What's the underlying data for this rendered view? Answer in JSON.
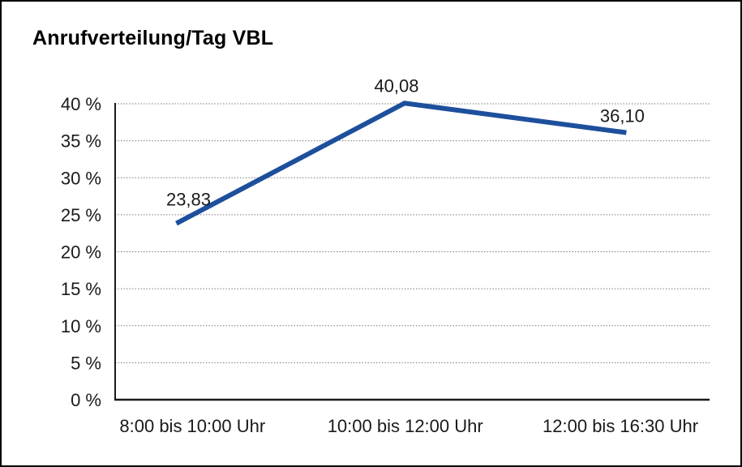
{
  "title": "Anrufverteilung/Tag VBL",
  "chart_data": {
    "type": "line",
    "title": "Anrufverteilung/Tag VBL",
    "categories": [
      "8:00 bis 10:00 Uhr",
      "10:00 bis 12:00 Uhr",
      "12:00 bis 16:30 Uhr"
    ],
    "values": [
      23.83,
      40.08,
      36.1
    ],
    "value_labels": [
      "23,83",
      "40,08",
      "36,10"
    ],
    "ylim": [
      0,
      40
    ],
    "ytick_step": 5,
    "ytick_labels": [
      "0 %",
      "5 %",
      "10 %",
      "15 %",
      "20 %",
      "25 %",
      "30 %",
      "35 %",
      "40 %"
    ],
    "xlabel": "",
    "ylabel": "",
    "grid": "horizontal-dotted",
    "legend": "none"
  },
  "colors": {
    "line": "#1d4f9c",
    "axis": "#1a1a1a",
    "grid": "#666666",
    "text": "#1a1a1a",
    "background": "#ffffff",
    "frame_border": "#000000"
  }
}
